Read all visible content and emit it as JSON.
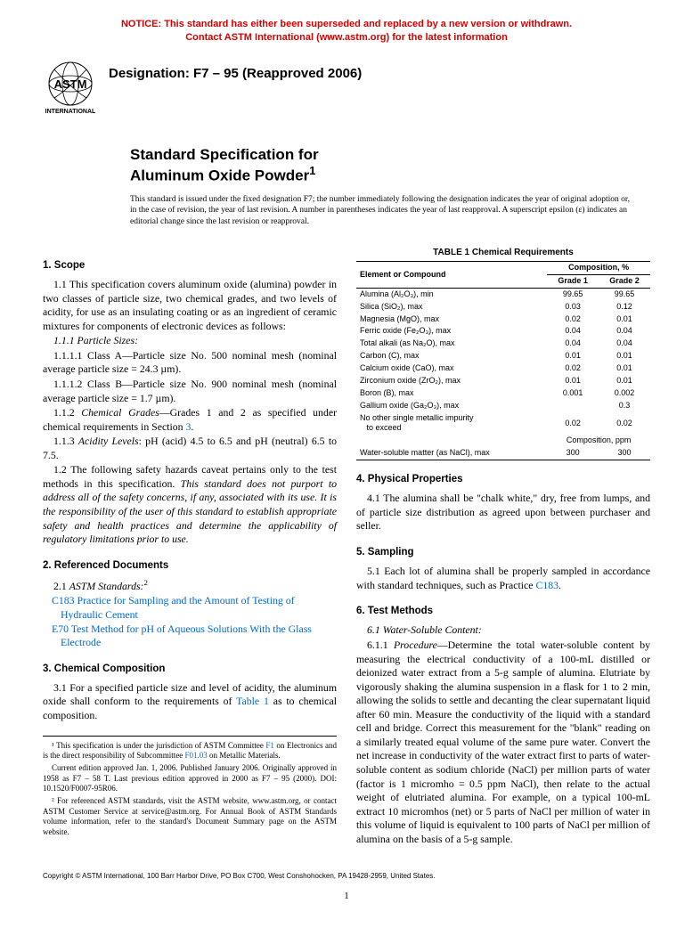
{
  "notice": {
    "line1": "NOTICE: This standard has either been superseded and replaced by a new version or withdrawn.",
    "line2": "Contact ASTM International (www.astm.org) for the latest information"
  },
  "logo": {
    "top_text": "ASTM",
    "bottom_text": "INTERNATIONAL"
  },
  "designation": "Designation: F7 – 95 (Reapproved 2006)",
  "title": {
    "line1": "Standard Specification for",
    "line2": "Aluminum Oxide Powder",
    "sup": "1"
  },
  "issue_note": "This standard is issued under the fixed designation F7; the number immediately following the designation indicates the year of original adoption or, in the case of revision, the year of last revision. A number in parentheses indicates the year of last reapproval. A superscript epsilon (ε) indicates an editorial change since the last revision or reapproval.",
  "sections": {
    "scope_head": "1. Scope",
    "ref_docs_head": "2. Referenced Documents",
    "chem_head": "3. Chemical Composition",
    "phys_head": "4. Physical Properties",
    "sampling_head": "5. Sampling",
    "test_head": "6. Test Methods"
  },
  "scope": {
    "p1_1": "1.1 This specification covers aluminum oxide (alumina) powder in two classes of particle size, two chemical grades, and two levels of acidity, for use as an insulating coating or as an ingredient of ceramic mixtures for components of electronic devices as follows:",
    "p1_1_1": "1.1.1 Particle Sizes:",
    "p1_1_1_1": "1.1.1.1 Class A—Particle size No. 500 nominal mesh (nominal average particle size = 24.3 µm).",
    "p1_1_1_2": "1.1.1.2 Class B—Particle size No. 900 nominal mesh (nominal average particle size = 1.7 µm).",
    "p1_1_2_a": "1.1.2 ",
    "p1_1_2_b": "Chemical Grades",
    "p1_1_2_c": "—Grades 1 and 2 as specified under chemical requirements in Section ",
    "p1_1_2_link": "3",
    "p1_1_2_d": ".",
    "p1_1_3_a": "1.1.3 ",
    "p1_1_3_b": "Acidity Levels",
    "p1_1_3_c": ": pH (acid) 4.5 to 6.5 and pH (neutral) 6.5 to 7.5.",
    "p1_2_a": "1.2 The following safety hazards caveat pertains only to the test methods in this specification. ",
    "p1_2_b": "This standard does not purport to address all of the safety concerns, if any, associated with its use. It is the responsibility of the user of this standard to establish appropriate safety and health practices and determine the applicability of regulatory limitations prior to use."
  },
  "refdocs": {
    "p2_1a": "2.1 ",
    "p2_1b": "ASTM Standards:",
    "p2_1sup": "2",
    "r1_code": "C183",
    "r1_text": " Practice for Sampling and the Amount of Testing of Hydraulic Cement",
    "r2_code": "E70",
    "r2_text": " Test Method for pH of Aqueous Solutions With the Glass Electrode"
  },
  "chem": {
    "p3_1_a": "3.1 For a specified particle size and level of acidity, the aluminum oxide shall conform to the requirements of ",
    "p3_1_link": "Table 1",
    "p3_1_b": " as to chemical composition."
  },
  "phys": {
    "p4_1": "4.1 The alumina shall be \"chalk white,\" dry, free from lumps, and of particle size distribution as agreed upon between purchaser and seller."
  },
  "sampling": {
    "p5_1_a": "5.1 Each lot of alumina shall be properly sampled in accordance with standard techniques, such as Practice ",
    "p5_1_link": "C183",
    "p5_1_b": "."
  },
  "test": {
    "p6_1": "6.1 Water-Soluble Content:",
    "p6_1_1_a": "6.1.1 ",
    "p6_1_1_b": "Procedure",
    "p6_1_1_c": "—Determine the total water-soluble content by measuring the electrical conductivity of a 100-mL distilled or deionized water extract from a 5-g sample of alumina. Elutriate by vigorously shaking the alumina suspension in a flask for 1 to 2 min, allowing the solids to settle and decanting the clear supernatant liquid after 60 min. Measure the conductivity of the liquid with a standard cell and bridge. Correct this measurement for the \"blank\" reading on a similarly treated equal volume of the same pure water. Convert the net increase in conductivity of the water extract first to parts of water-soluble content as sodium chloride (NaCl) per million parts of water (factor is 1 micromho = 0.5 ppm NaCl), then relate to the actual weight of elutriated alumina. For example, on a typical 100-mL extract 10 micromhos (net) or 5 parts of NaCl per million of water in this volume of liquid is equivalent to 100 parts of NaCl per million of alumina on the basis of a 5-g sample."
  },
  "table1": {
    "title": "TABLE 1  Chemical Requirements",
    "col_element": "Element or Compound",
    "col_comp": "Composition, %",
    "col_g1": "Grade 1",
    "col_g2": "Grade 2",
    "rows": [
      {
        "name": "Alumina (Al₂O₃), min",
        "g1": "99.65",
        "g2": "99.65"
      },
      {
        "name": "Silica (SiO₂), max",
        "g1": "0.03",
        "g2": "0.12"
      },
      {
        "name": "Magnesia (MgO), max",
        "g1": "0.02",
        "g2": "0.01"
      },
      {
        "name": "Ferric oxide (Fe₂O₃), max",
        "g1": "0.04",
        "g2": "0.04"
      },
      {
        "name": "Total alkali (as Na₂O), max",
        "g1": "0.04",
        "g2": "0.04"
      },
      {
        "name": "Carbon (C), max",
        "g1": "0.01",
        "g2": "0.01"
      },
      {
        "name": "Calcium oxide (CaO), max",
        "g1": "0.02",
        "g2": "0.01"
      },
      {
        "name": "Zirconium oxide (ZrO₂), max",
        "g1": "0.01",
        "g2": "0.01"
      },
      {
        "name": "Boron (B), max",
        "g1": "0.001",
        "g2": "0.002"
      },
      {
        "name": "Gallium oxide (Ga₂O₃), max",
        "g1": "",
        "g2": "0.3"
      },
      {
        "name": "No other single metallic impurity to exceed",
        "g1": "0.02",
        "g2": "0.02"
      }
    ],
    "comp_ppm": "Composition, ppm",
    "water_row": {
      "name": "Water-soluble matter (as NaCl), max",
      "g1": "300",
      "g2": "300"
    }
  },
  "footnotes": {
    "f1_a": "¹ This specification is under the jurisdiction of ASTM Committee ",
    "f1_link1": "F1",
    "f1_b": " on Electronics and is the direct responsibility of Subcommittee ",
    "f1_link2": "F01.03",
    "f1_c": " on Metallic Materials.",
    "f1_2": "Current edition approved Jan. 1, 2006. Published January 2006. Originally approved in 1958 as F7 – 58 T. Last previous edition approved in 2000 as F7 – 95 (2000). DOI: 10.1520/F0007-95R06.",
    "f2": "² For referenced ASTM standards, visit the ASTM website, www.astm.org, or contact ASTM Customer Service at service@astm.org. For Annual Book of ASTM Standards volume information, refer to the standard's Document Summary page on the ASTM website."
  },
  "copyright": "Copyright © ASTM International, 100 Barr Harbor Drive, PO Box C700, West Conshohocken, PA 19428-2959, United States.",
  "pagenum": "1"
}
